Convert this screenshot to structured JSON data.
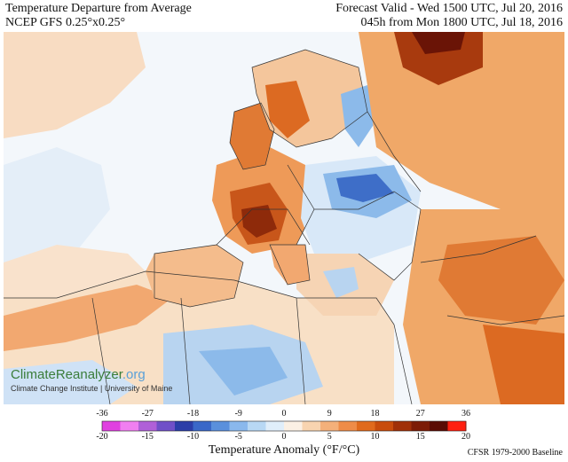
{
  "header": {
    "title": "Temperature Departure from Average",
    "model": "NCEP GFS 0.25°x0.25°",
    "valid": "Forecast Valid - Wed 1500 UTC, Jul 20, 2016",
    "init": "045h from Mon 1800 UTC, Jul 18, 2016"
  },
  "credit": {
    "brand_main": "ClimateReanalyzer",
    "brand_suffix": ".org",
    "institution": "Climate Change Institute | University of Maine"
  },
  "colorbar": {
    "label": "Temperature Anomaly (°F/°C)",
    "baseline": "CFSR 1979-2000 Baseline",
    "f_ticks": [
      "-36",
      "-27",
      "-18",
      "-9",
      "0",
      "9",
      "18",
      "27",
      "36"
    ],
    "c_ticks": [
      "-20",
      "-15",
      "-10",
      "-5",
      "0",
      "5",
      "10",
      "15",
      "20"
    ],
    "colors": [
      "#e040e0",
      "#f07ff0",
      "#b060d8",
      "#7050c8",
      "#2c3ea8",
      "#3a68c8",
      "#5a90dc",
      "#8ab8ec",
      "#b8d8f4",
      "#e0eefa",
      "#fbf0e4",
      "#f8d4b0",
      "#f4b07a",
      "#ee8c48",
      "#e06a1c",
      "#c84c0c",
      "#a03008",
      "#7c1c06",
      "#5a0c04",
      "#ff2010"
    ]
  },
  "map": {
    "palette": {
      "ocean_neutral": "#eef4fa",
      "light_warm": "#f8d8b8",
      "warm": "#f0a868",
      "hot": "#dc6a22",
      "very_hot": "#a83a0e",
      "extreme": "#6a1406",
      "light_cool": "#cfe2f6",
      "cool": "#8cbaea",
      "cold": "#3e6ec8",
      "border": "#333333"
    }
  }
}
